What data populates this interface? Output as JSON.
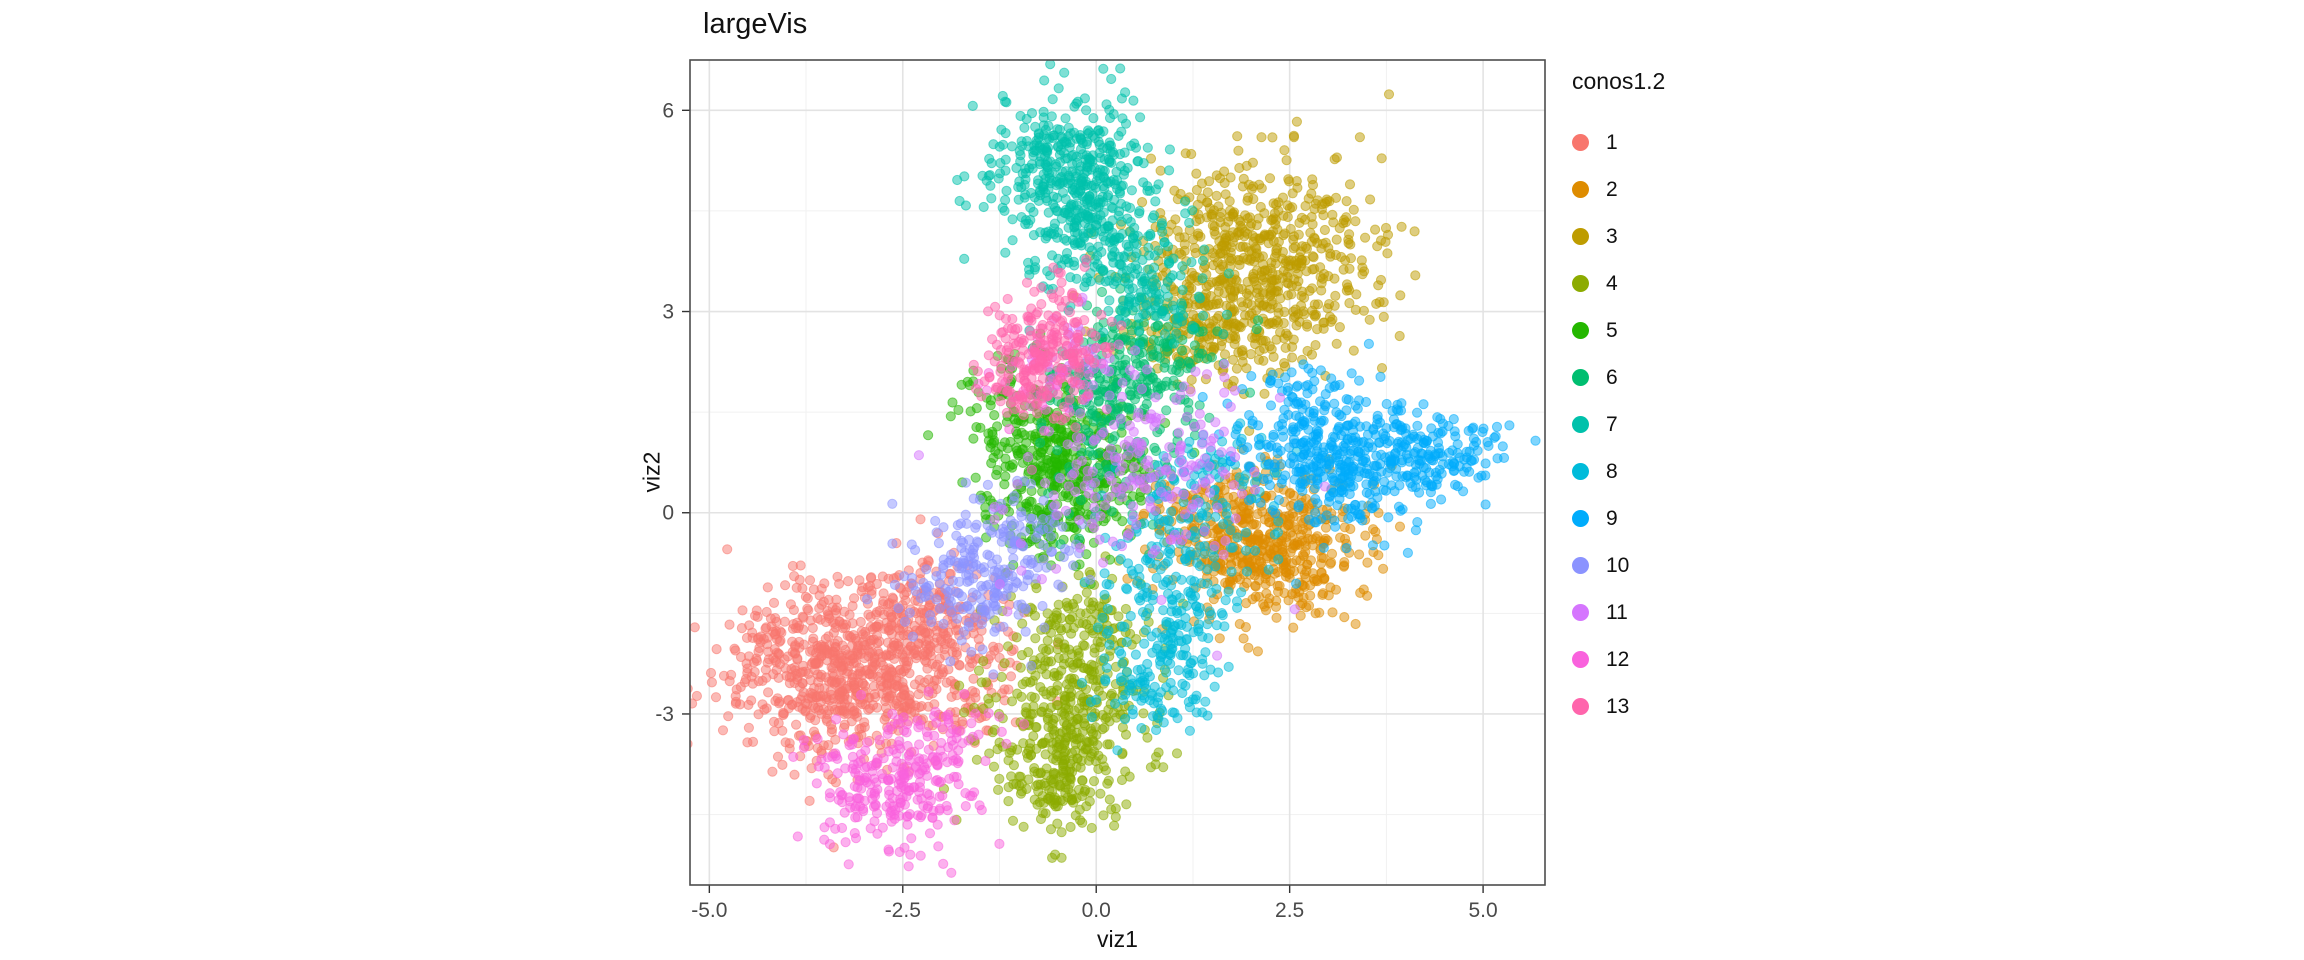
{
  "page": {
    "background": "#FFFFFF"
  },
  "chart_data": {
    "type": "scatter",
    "title": "largeVis",
    "xlabel": "viz1",
    "ylabel": "viz2",
    "xlim": [
      -5.25,
      5.8
    ],
    "ylim": [
      -5.55,
      6.75
    ],
    "x_ticks": [
      -5.0,
      -2.5,
      0.0,
      2.5,
      5.0
    ],
    "x_tick_labels": [
      "-5.0",
      "-2.5",
      "0.0",
      "2.5",
      "5.0"
    ],
    "y_ticks": [
      -3,
      0,
      3,
      6
    ],
    "y_tick_labels": [
      "-3",
      "0",
      "3",
      "6"
    ],
    "x_minor_ticks": [
      -3.75,
      -1.25,
      1.25,
      3.75
    ],
    "y_minor_ticks": [
      -4.5,
      -1.5,
      1.5,
      4.5
    ],
    "grid": true,
    "panel_border_color": "#4d4d4d",
    "grid_major_color": "#e3e3e3",
    "grid_minor_color": "#f1f1f1",
    "tick_label_color": "#4a4a4a",
    "point_alpha": 0.5,
    "point_radius_px": 4.6,
    "legend": {
      "title": "conos1.2",
      "position": "right"
    },
    "blob_format": "[center_x, center_y, sd_x, sd_y, n_points]",
    "series": [
      {
        "name": "1",
        "color": "#F8766D",
        "blobs": [
          [
            -3.3,
            -2.35,
            0.72,
            0.62,
            700
          ],
          [
            -2.3,
            -1.55,
            0.55,
            0.45,
            200
          ],
          [
            -1.7,
            -2.6,
            0.4,
            0.4,
            80
          ]
        ]
      },
      {
        "name": "2",
        "color": "#DE8C00",
        "blobs": [
          [
            2.25,
            -0.55,
            0.62,
            0.55,
            450
          ],
          [
            1.55,
            -0.1,
            0.45,
            0.4,
            120
          ]
        ]
      },
      {
        "name": "3",
        "color": "#BE9C00",
        "blobs": [
          [
            2.05,
            3.7,
            0.75,
            0.8,
            650
          ],
          [
            1.35,
            2.7,
            0.45,
            0.45,
            120
          ]
        ]
      },
      {
        "name": "4",
        "color": "#8CAB00",
        "blobs": [
          [
            -0.35,
            -2.9,
            0.55,
            0.75,
            400
          ],
          [
            -0.55,
            -4.15,
            0.3,
            0.35,
            100
          ],
          [
            -0.1,
            -1.6,
            0.4,
            0.4,
            80
          ]
        ]
      },
      {
        "name": "5",
        "color": "#24B700",
        "blobs": [
          [
            -0.35,
            0.7,
            0.55,
            0.5,
            350
          ],
          [
            -1.0,
            1.5,
            0.4,
            0.45,
            90
          ],
          [
            -0.6,
            0.0,
            0.45,
            0.4,
            90
          ]
        ]
      },
      {
        "name": "6",
        "color": "#00BE70",
        "blobs": [
          [
            0.55,
            2.35,
            0.5,
            0.45,
            180
          ],
          [
            0.1,
            1.7,
            0.4,
            0.35,
            90
          ],
          [
            0.4,
            0.9,
            0.6,
            0.6,
            70
          ]
        ]
      },
      {
        "name": "7",
        "color": "#00C1AB",
        "blobs": [
          [
            -0.35,
            5.0,
            0.5,
            0.55,
            420
          ],
          [
            0.25,
            3.9,
            0.5,
            0.45,
            180
          ],
          [
            0.85,
            3.1,
            0.35,
            0.3,
            60
          ]
        ]
      },
      {
        "name": "8",
        "color": "#00BBDA",
        "blobs": [
          [
            0.95,
            -1.5,
            0.45,
            0.75,
            220
          ],
          [
            1.5,
            0.3,
            0.5,
            0.5,
            120
          ],
          [
            0.6,
            -2.6,
            0.3,
            0.4,
            60
          ]
        ]
      },
      {
        "name": "9",
        "color": "#00ACFC",
        "blobs": [
          [
            3.2,
            0.8,
            0.65,
            0.5,
            400
          ],
          [
            4.5,
            0.85,
            0.45,
            0.28,
            110
          ],
          [
            2.6,
            1.6,
            0.4,
            0.35,
            60
          ]
        ]
      },
      {
        "name": "10",
        "color": "#8B93FF",
        "blobs": [
          [
            -1.55,
            -0.95,
            0.45,
            0.5,
            200
          ],
          [
            -0.9,
            -0.3,
            0.35,
            0.35,
            60
          ]
        ]
      },
      {
        "name": "11",
        "color": "#D575FE",
        "blobs": [
          [
            0.7,
            0.9,
            0.6,
            0.6,
            150
          ],
          [
            -0.3,
            2.3,
            0.3,
            0.4,
            40
          ],
          [
            0.5,
            0.3,
            0.9,
            0.8,
            60
          ]
        ]
      },
      {
        "name": "12",
        "color": "#F962DD",
        "blobs": [
          [
            -2.65,
            -4.1,
            0.5,
            0.45,
            240
          ],
          [
            -1.9,
            -3.4,
            0.4,
            0.35,
            60
          ],
          [
            -0.7,
            2.1,
            0.35,
            0.45,
            40
          ]
        ]
      },
      {
        "name": "13",
        "color": "#FF65AC",
        "blobs": [
          [
            -0.6,
            2.45,
            0.35,
            0.5,
            200
          ],
          [
            -1.0,
            1.9,
            0.3,
            0.3,
            50
          ]
        ]
      }
    ]
  }
}
